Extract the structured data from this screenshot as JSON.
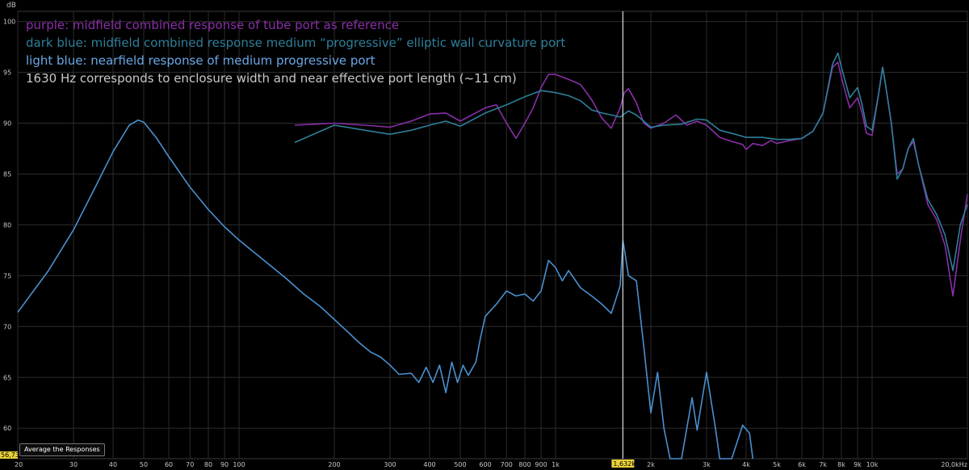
{
  "legend": {
    "purple": "purple: midfield combined response of tube port as reference",
    "dark_blue": "dark blue: midfield combined response medium “progressive” elliptic wall curvature port",
    "light_blue": "light blue: nearfield response of medium progressive port",
    "note": "1630 Hz corresponds to enclosure width and near effective port length (~11 cm)"
  },
  "controls": {
    "average_button": "Average the Responses"
  },
  "readouts": {
    "y_cursor": "56,73",
    "x_cursor": "1,632k"
  },
  "colors": {
    "purple": "#8a2ea8",
    "dark_blue": "#2e7f9a",
    "light_blue": "#4a90d0",
    "cursor": "#d0d0d0",
    "grid": "#2c2c2c",
    "background": "#000000"
  },
  "chart_data": {
    "type": "line",
    "xscale": "log",
    "xlim": [
      20,
      20000
    ],
    "ylim": [
      57,
      101
    ],
    "ylabel": "dB",
    "y_ticks": [
      "100",
      "95",
      "90",
      "85",
      "80",
      "75",
      "70",
      "65",
      "60"
    ],
    "y_tick_values": [
      100,
      95,
      90,
      85,
      80,
      75,
      70,
      65,
      60
    ],
    "x_ticks": [
      "20",
      "30",
      "40",
      "50",
      "60",
      "70",
      "80",
      "90",
      "100",
      "200",
      "300",
      "400",
      "500",
      "600",
      "700",
      "800",
      "900",
      "1k",
      "2k",
      "3k",
      "4k",
      "5k",
      "6k",
      "7k",
      "8k",
      "9k",
      "10k",
      "20,0kHz"
    ],
    "x_tick_values": [
      20,
      30,
      40,
      50,
      60,
      70,
      80,
      90,
      100,
      200,
      300,
      400,
      500,
      600,
      700,
      800,
      900,
      1000,
      2000,
      3000,
      4000,
      5000,
      6000,
      7000,
      8000,
      9000,
      10000,
      20000
    ],
    "cursor_hz": 1632,
    "grid": true,
    "series": [
      {
        "key": "purple",
        "points": [
          [
            150,
            89.8
          ],
          [
            200,
            90
          ],
          [
            250,
            89.8
          ],
          [
            300,
            89.6
          ],
          [
            350,
            90.2
          ],
          [
            400,
            90.9
          ],
          [
            450,
            91
          ],
          [
            500,
            90.2
          ],
          [
            600,
            91.5
          ],
          [
            650,
            91.8
          ],
          [
            700,
            90
          ],
          [
            750,
            88.5
          ],
          [
            800,
            90
          ],
          [
            850,
            91.5
          ],
          [
            900,
            93.5
          ],
          [
            950,
            94.8
          ],
          [
            1000,
            94.8
          ],
          [
            1100,
            94.3
          ],
          [
            1200,
            93.8
          ],
          [
            1300,
            92.3
          ],
          [
            1400,
            90.5
          ],
          [
            1500,
            89.5
          ],
          [
            1600,
            91.5
          ],
          [
            1650,
            93
          ],
          [
            1700,
            93.4
          ],
          [
            1800,
            92
          ],
          [
            1900,
            90
          ],
          [
            2000,
            89.5
          ],
          [
            2200,
            90
          ],
          [
            2400,
            90.8
          ],
          [
            2600,
            89.8
          ],
          [
            2800,
            90.2
          ],
          [
            3000,
            89.8
          ],
          [
            3300,
            88.6
          ],
          [
            3600,
            88.2
          ],
          [
            3900,
            87.9
          ],
          [
            4000,
            87.4
          ],
          [
            4200,
            88
          ],
          [
            4500,
            87.8
          ],
          [
            4800,
            88.3
          ],
          [
            5000,
            88
          ],
          [
            5500,
            88.3
          ],
          [
            6000,
            88.5
          ],
          [
            6500,
            89.2
          ],
          [
            7000,
            91
          ],
          [
            7500,
            95.5
          ],
          [
            7800,
            96
          ],
          [
            8000,
            94.5
          ],
          [
            8500,
            91.5
          ],
          [
            9000,
            92.5
          ],
          [
            9300,
            91
          ],
          [
            9600,
            89
          ],
          [
            10000,
            88.8
          ],
          [
            10500,
            93
          ],
          [
            10800,
            95.5
          ],
          [
            11000,
            94
          ],
          [
            11500,
            90
          ],
          [
            12000,
            85
          ],
          [
            12500,
            85.5
          ],
          [
            13000,
            87.5
          ],
          [
            13500,
            88.2
          ],
          [
            14000,
            86
          ],
          [
            15000,
            82
          ],
          [
            16000,
            80.5
          ],
          [
            17000,
            78
          ],
          [
            18000,
            73
          ],
          [
            19000,
            78.5
          ],
          [
            20000,
            83
          ]
        ]
      },
      {
        "key": "dark_blue",
        "points": [
          [
            150,
            88.1
          ],
          [
            200,
            89.8
          ],
          [
            250,
            89.3
          ],
          [
            300,
            88.9
          ],
          [
            350,
            89.3
          ],
          [
            400,
            89.8
          ],
          [
            450,
            90.2
          ],
          [
            500,
            89.7
          ],
          [
            600,
            91
          ],
          [
            700,
            91.8
          ],
          [
            800,
            92.6
          ],
          [
            900,
            93.2
          ],
          [
            1000,
            93
          ],
          [
            1100,
            92.7
          ],
          [
            1200,
            92.2
          ],
          [
            1300,
            91.3
          ],
          [
            1400,
            91
          ],
          [
            1500,
            90.8
          ],
          [
            1600,
            90.6
          ],
          [
            1700,
            91.2
          ],
          [
            1800,
            90.8
          ],
          [
            2000,
            89.6
          ],
          [
            2200,
            89.8
          ],
          [
            2500,
            89.9
          ],
          [
            2800,
            90.4
          ],
          [
            3000,
            90.3
          ],
          [
            3300,
            89.3
          ],
          [
            3700,
            88.9
          ],
          [
            4000,
            88.6
          ],
          [
            4500,
            88.6
          ],
          [
            5000,
            88.4
          ],
          [
            5500,
            88.4
          ],
          [
            6000,
            88.5
          ],
          [
            6500,
            89.2
          ],
          [
            7000,
            91
          ],
          [
            7500,
            95.8
          ],
          [
            7800,
            96.9
          ],
          [
            8000,
            95.5
          ],
          [
            8500,
            92.5
          ],
          [
            9000,
            93.5
          ],
          [
            9300,
            91.8
          ],
          [
            9600,
            89.7
          ],
          [
            10000,
            89.3
          ],
          [
            10500,
            93
          ],
          [
            10800,
            95.5
          ],
          [
            11000,
            94
          ],
          [
            11500,
            90
          ],
          [
            12000,
            84.5
          ],
          [
            12500,
            85.5
          ],
          [
            13000,
            87.5
          ],
          [
            13500,
            88.5
          ],
          [
            14000,
            86
          ],
          [
            15000,
            82.5
          ],
          [
            16000,
            81
          ],
          [
            17000,
            79
          ],
          [
            18000,
            75.5
          ],
          [
            19000,
            80
          ],
          [
            20000,
            82
          ]
        ]
      },
      {
        "key": "light_blue",
        "points": [
          [
            20,
            71.4
          ],
          [
            25,
            75.5
          ],
          [
            30,
            79.5
          ],
          [
            35,
            83.6
          ],
          [
            40,
            87.2
          ],
          [
            45,
            89.8
          ],
          [
            48,
            90.3
          ],
          [
            50,
            90.1
          ],
          [
            55,
            88.5
          ],
          [
            60,
            86.7
          ],
          [
            70,
            83.7
          ],
          [
            80,
            81.5
          ],
          [
            90,
            79.8
          ],
          [
            100,
            78.5
          ],
          [
            120,
            76.5
          ],
          [
            140,
            74.8
          ],
          [
            160,
            73.2
          ],
          [
            180,
            72
          ],
          [
            200,
            70.7
          ],
          [
            220,
            69.5
          ],
          [
            240,
            68.4
          ],
          [
            260,
            67.5
          ],
          [
            280,
            67
          ],
          [
            300,
            66.2
          ],
          [
            320,
            65.3
          ],
          [
            350,
            65.4
          ],
          [
            370,
            64.5
          ],
          [
            390,
            66
          ],
          [
            410,
            64.5
          ],
          [
            430,
            66.2
          ],
          [
            450,
            63.5
          ],
          [
            470,
            66.5
          ],
          [
            490,
            64.5
          ],
          [
            510,
            66.2
          ],
          [
            530,
            65.2
          ],
          [
            560,
            66.5
          ],
          [
            580,
            69
          ],
          [
            600,
            71
          ],
          [
            650,
            72.2
          ],
          [
            700,
            73.5
          ],
          [
            750,
            73
          ],
          [
            800,
            73.2
          ],
          [
            850,
            72.5
          ],
          [
            900,
            73.5
          ],
          [
            950,
            76.5
          ],
          [
            1000,
            75.8
          ],
          [
            1050,
            74.5
          ],
          [
            1100,
            75.5
          ],
          [
            1200,
            73.8
          ],
          [
            1300,
            73
          ],
          [
            1400,
            72.2
          ],
          [
            1500,
            71.3
          ],
          [
            1600,
            74
          ],
          [
            1632,
            78.5
          ],
          [
            1700,
            75
          ],
          [
            1800,
            74.5
          ],
          [
            1900,
            68
          ],
          [
            2000,
            61.5
          ],
          [
            2100,
            65.5
          ],
          [
            2200,
            60
          ],
          [
            2300,
            57
          ],
          [
            2500,
            57
          ],
          [
            2700,
            63
          ],
          [
            2800,
            59.8
          ],
          [
            3000,
            65.5
          ],
          [
            3200,
            60
          ],
          [
            3300,
            57
          ],
          [
            3600,
            57
          ],
          [
            3900,
            60.3
          ],
          [
            4100,
            59.5
          ],
          [
            4200,
            57
          ]
        ]
      }
    ]
  }
}
